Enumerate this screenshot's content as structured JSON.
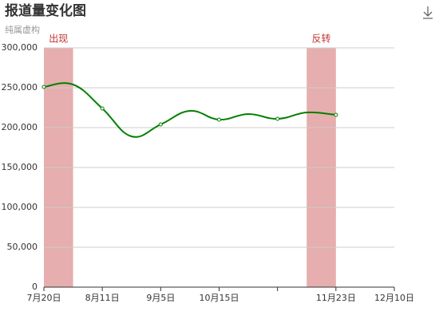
{
  "chart_data": {
    "type": "line",
    "title": "报道量变化图",
    "subtitle": "纯属虚构",
    "categories": [
      "7月20日",
      null,
      "8月11日",
      null,
      "9月5日",
      null,
      "10月15日",
      null,
      null,
      null,
      "11月23日",
      null,
      "12月10日"
    ],
    "xtick_interval": 2,
    "series": [
      {
        "color": "#008000",
        "values": [
          251000,
          254000,
          224000,
          189000,
          204000,
          221000,
          210000,
          217000,
          211000,
          219000,
          216000,
          null,
          null
        ]
      }
    ],
    "ylim": [
      0,
      300000
    ],
    "yticks": [
      0,
      {
        "value": 50000,
        "label": "50,000"
      },
      {
        "value": 100000,
        "label": "100,000"
      },
      {
        "value": 150000,
        "label": "150,000"
      },
      {
        "value": 200000,
        "label": "200,000"
      },
      {
        "value": 250000,
        "label": "250,000"
      },
      {
        "value": 300000,
        "label": "300,000"
      }
    ],
    "grid": true,
    "mark_areas": [
      {
        "label": "出现",
        "start": 0,
        "end": 1,
        "color": "#e6aeae",
        "label_color": "#c23531"
      },
      {
        "label": "反转",
        "start": 9,
        "end": 10,
        "color": "#e6aeae",
        "label_color": "#c23531"
      }
    ]
  }
}
